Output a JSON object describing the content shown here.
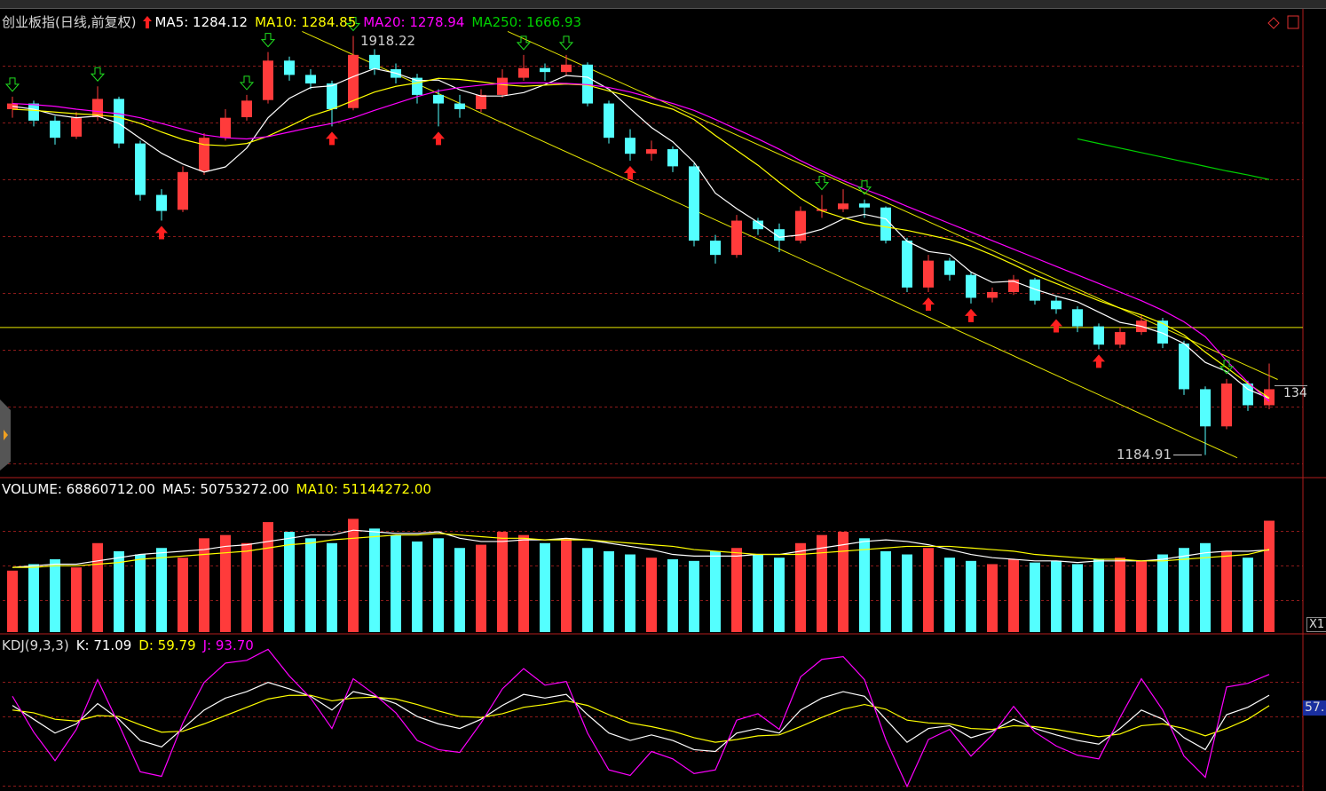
{
  "chart_data": [
    {
      "type": "candlestick",
      "title": "创业板指(日线,前复权)",
      "ylim": [
        1150,
        1950
      ],
      "up_color": "#ff3b3b",
      "down_color": "#54ffff",
      "ohlc": [
        [
          1790,
          1812,
          1775,
          1800
        ],
        [
          1800,
          1805,
          1760,
          1770
        ],
        [
          1770,
          1778,
          1728,
          1740
        ],
        [
          1742,
          1785,
          1738,
          1775
        ],
        [
          1776,
          1830,
          1770,
          1808
        ],
        [
          1808,
          1812,
          1722,
          1730
        ],
        [
          1730,
          1735,
          1630,
          1640
        ],
        [
          1640,
          1650,
          1595,
          1612
        ],
        [
          1614,
          1690,
          1610,
          1680
        ],
        [
          1682,
          1748,
          1675,
          1740
        ],
        [
          1740,
          1790,
          1735,
          1775
        ],
        [
          1776,
          1815,
          1770,
          1805
        ],
        [
          1806,
          1890,
          1800,
          1875
        ],
        [
          1875,
          1882,
          1840,
          1850
        ],
        [
          1850,
          1860,
          1825,
          1835
        ],
        [
          1835,
          1840,
          1760,
          1790
        ],
        [
          1792,
          1918.22,
          1788,
          1885
        ],
        [
          1885,
          1895,
          1850,
          1860
        ],
        [
          1860,
          1870,
          1835,
          1845
        ],
        [
          1845,
          1852,
          1800,
          1815
        ],
        [
          1815,
          1825,
          1760,
          1800
        ],
        [
          1800,
          1815,
          1775,
          1790
        ],
        [
          1790,
          1825,
          1785,
          1815
        ],
        [
          1815,
          1860,
          1810,
          1845
        ],
        [
          1845,
          1885,
          1840,
          1862
        ],
        [
          1862,
          1870,
          1840,
          1855
        ],
        [
          1855,
          1885,
          1850,
          1868
        ],
        [
          1868,
          1872,
          1795,
          1800
        ],
        [
          1800,
          1805,
          1730,
          1740
        ],
        [
          1740,
          1755,
          1700,
          1712
        ],
        [
          1712,
          1735,
          1700,
          1720
        ],
        [
          1720,
          1725,
          1680,
          1690
        ],
        [
          1690,
          1695,
          1550,
          1560
        ],
        [
          1560,
          1570,
          1520,
          1535
        ],
        [
          1535,
          1605,
          1530,
          1595
        ],
        [
          1595,
          1600,
          1570,
          1580
        ],
        [
          1580,
          1590,
          1540,
          1560
        ],
        [
          1560,
          1620,
          1555,
          1612
        ],
        [
          1612,
          1640,
          1600,
          1615
        ],
        [
          1615,
          1650,
          1610,
          1625
        ],
        [
          1625,
          1632,
          1600,
          1618
        ],
        [
          1618,
          1620,
          1555,
          1560
        ],
        [
          1560,
          1565,
          1470,
          1478
        ],
        [
          1478,
          1535,
          1470,
          1525
        ],
        [
          1525,
          1530,
          1490,
          1500
        ],
        [
          1500,
          1505,
          1450,
          1460
        ],
        [
          1460,
          1478,
          1452,
          1470
        ],
        [
          1470,
          1500,
          1465,
          1492
        ],
        [
          1492,
          1495,
          1448,
          1455
        ],
        [
          1455,
          1462,
          1432,
          1440
        ],
        [
          1440,
          1445,
          1400,
          1410
        ],
        [
          1410,
          1415,
          1370,
          1378
        ],
        [
          1378,
          1408,
          1372,
          1400
        ],
        [
          1400,
          1430,
          1395,
          1420
        ],
        [
          1420,
          1425,
          1372,
          1380
        ],
        [
          1380,
          1385,
          1290,
          1300
        ],
        [
          1300,
          1305,
          1184.91,
          1235
        ],
        [
          1235,
          1318,
          1230,
          1310
        ],
        [
          1310,
          1315,
          1262,
          1272
        ],
        [
          1272,
          1345,
          1265,
          1300
        ]
      ],
      "series": [
        {
          "name": "MA5: 1284.12",
          "color": "#ffffff",
          "values": [
            1795,
            1790,
            1780,
            1775,
            1778,
            1765,
            1739,
            1713,
            1694,
            1680,
            1689,
            1722,
            1775,
            1809,
            1828,
            1831,
            1847,
            1861,
            1853,
            1840,
            1841,
            1824,
            1813,
            1813,
            1819,
            1833,
            1849,
            1846,
            1825,
            1791,
            1758,
            1733,
            1697,
            1643,
            1616,
            1592,
            1566,
            1570,
            1580,
            1598,
            1606,
            1598,
            1559,
            1541,
            1536,
            1505,
            1487,
            1489,
            1475,
            1463,
            1453,
            1435,
            1417,
            1410,
            1398,
            1380,
            1347,
            1331,
            1300,
            1284.12
          ]
        },
        {
          "name": "MA10: 1284.85",
          "color": "#ffff00",
          "values": [
            1790,
            1788,
            1785,
            1782,
            1780,
            1776,
            1765,
            1750,
            1737,
            1728,
            1726,
            1730,
            1743,
            1760,
            1778,
            1790,
            1805,
            1820,
            1830,
            1836,
            1844,
            1842,
            1838,
            1833,
            1830,
            1832,
            1834,
            1832,
            1822,
            1812,
            1800,
            1790,
            1772,
            1744,
            1718,
            1692,
            1662,
            1634,
            1612,
            1600,
            1590,
            1584,
            1578,
            1570,
            1562,
            1550,
            1535,
            1518,
            1500,
            1485,
            1470,
            1455,
            1442,
            1430,
            1415,
            1395,
            1365,
            1338,
            1310,
            1284.85
          ]
        },
        {
          "name": "MA20: 1278.94",
          "color": "#ff00ff",
          "values": [
            1800,
            1798,
            1795,
            1790,
            1786,
            1782,
            1775,
            1765,
            1755,
            1745,
            1740,
            1738,
            1742,
            1750,
            1758,
            1765,
            1775,
            1788,
            1800,
            1812,
            1822,
            1828,
            1832,
            1835,
            1836,
            1836,
            1835,
            1833,
            1828,
            1820,
            1810,
            1800,
            1788,
            1772,
            1755,
            1738,
            1720,
            1700,
            1682,
            1665,
            1650,
            1636,
            1620,
            1605,
            1590,
            1575,
            1560,
            1545,
            1530,
            1515,
            1500,
            1485,
            1470,
            1455,
            1438,
            1418,
            1392,
            1350,
            1312,
            1278.94
          ]
        },
        {
          "name": "MA250: 1666.93",
          "color": "#00d000",
          "values": [
            null,
            null,
            null,
            null,
            null,
            null,
            null,
            null,
            null,
            null,
            null,
            null,
            null,
            null,
            null,
            null,
            null,
            null,
            null,
            null,
            null,
            null,
            null,
            null,
            null,
            null,
            null,
            null,
            null,
            null,
            null,
            null,
            null,
            null,
            null,
            null,
            null,
            null,
            null,
            null,
            null,
            null,
            null,
            null,
            null,
            null,
            null,
            null,
            null,
            null,
            1738,
            1730,
            1722,
            1714,
            1706,
            1698,
            1690,
            1682,
            1675,
            1666.93
          ]
        }
      ],
      "hline": 1408,
      "hline_color": "#e8e800",
      "trendlines": [
        {
          "x": [
            13.6,
            57.5
          ],
          "y": [
            1926,
            1180
          ]
        },
        {
          "x": [
            23.25,
            59.4
          ],
          "y": [
            1926,
            1317
          ]
        }
      ],
      "trendline_color": "#e8e800",
      "buy_signals": [
        7,
        15,
        20,
        29,
        43,
        45,
        49,
        51
      ],
      "sell_signals": [
        0,
        4,
        11,
        12,
        16,
        24,
        26,
        38,
        40,
        57
      ],
      "buy_color": "#ff2020",
      "sell_color": "#20e020",
      "high_label": "1918.22",
      "low_label": "1184.91",
      "cursor_label": "134"
    },
    {
      "type": "bar",
      "ylim": [
        0,
        90000000
      ],
      "up_color": "#ff3b3b",
      "down_color": "#54ffff",
      "series": [
        {
          "name": "VOLUME: 68860712.00",
          "color": "#ffffff",
          "values": [
            38000000,
            42000000,
            45000000,
            40000000,
            55000000,
            50000000,
            48000000,
            52000000,
            46000000,
            58000000,
            60000000,
            55000000,
            68000000,
            62000000,
            58000000,
            55000000,
            70000000,
            64000000,
            60000000,
            56000000,
            58000000,
            52000000,
            54000000,
            62000000,
            60000000,
            55000000,
            58000000,
            52000000,
            50000000,
            48000000,
            46000000,
            45000000,
            44000000,
            50000000,
            52000000,
            48000000,
            46000000,
            55000000,
            60000000,
            62000000,
            58000000,
            50000000,
            48000000,
            52000000,
            46000000,
            44000000,
            42000000,
            45000000,
            43000000,
            44000000,
            42000000,
            45000000,
            46000000,
            44000000,
            48000000,
            52000000,
            55000000,
            50000000,
            46000000,
            68860712
          ]
        },
        {
          "name": "MA5: 50753272.00",
          "color": "#ffffff",
          "values": [
            40000000,
            41000000,
            42000000,
            42000000,
            44000000,
            46000000,
            48000000,
            49000000,
            50000000,
            51000000,
            53000000,
            54000000,
            56000000,
            58000000,
            60000000,
            60000000,
            63000000,
            62000000,
            61000000,
            61000000,
            62000000,
            58000000,
            56000000,
            56000000,
            57000000,
            57000000,
            58000000,
            57000000,
            55000000,
            53000000,
            51000000,
            48000000,
            47000000,
            47000000,
            47000000,
            48000000,
            48000000,
            50000000,
            52000000,
            54000000,
            56000000,
            57000000,
            56000000,
            54000000,
            51000000,
            48000000,
            46000000,
            45000000,
            44000000,
            44000000,
            43000000,
            44000000,
            44000000,
            44000000,
            45000000,
            47000000,
            49000000,
            50000000,
            50000000,
            50753272
          ]
        },
        {
          "name": "MA10: 51144272.00",
          "color": "#ffff00",
          "values": [
            40000000,
            40000000,
            41000000,
            41000000,
            42000000,
            43000000,
            45000000,
            46000000,
            47000000,
            48000000,
            49000000,
            50000000,
            52000000,
            54000000,
            55000000,
            57000000,
            58000000,
            59000000,
            60000000,
            60000000,
            61000000,
            60000000,
            59000000,
            58000000,
            58000000,
            57000000,
            57000000,
            57000000,
            56000000,
            55000000,
            54000000,
            53000000,
            51000000,
            50000000,
            49000000,
            48000000,
            48000000,
            48000000,
            49000000,
            50000000,
            51000000,
            52000000,
            53000000,
            53000000,
            53000000,
            52000000,
            51000000,
            50000000,
            48000000,
            47000000,
            46000000,
            45000000,
            45000000,
            44000000,
            44000000,
            45000000,
            46000000,
            47000000,
            48000000,
            51144272
          ]
        }
      ],
      "side_label": "X1"
    },
    {
      "type": "line",
      "title": "KDJ(9,3,3)",
      "ylim": [
        -30,
        130
      ],
      "series": [
        {
          "name": "K: 71.09",
          "color": "#ffffff",
          "values": [
            60,
            45,
            30,
            40,
            62,
            45,
            22,
            15,
            35,
            55,
            68,
            75,
            85,
            78,
            70,
            55,
            75,
            70,
            62,
            48,
            40,
            35,
            45,
            60,
            72,
            68,
            72,
            50,
            30,
            22,
            28,
            22,
            12,
            10,
            30,
            35,
            30,
            55,
            68,
            75,
            70,
            45,
            20,
            35,
            38,
            25,
            32,
            45,
            35,
            28,
            22,
            18,
            35,
            55,
            45,
            25,
            12,
            50,
            58,
            71.09
          ]
        },
        {
          "name": "D: 59.79",
          "color": "#ffff00",
          "values": [
            55,
            52,
            45,
            43,
            49,
            48,
            39,
            31,
            32,
            40,
            49,
            58,
            67,
            71,
            71,
            65,
            68,
            69,
            67,
            61,
            54,
            48,
            47,
            51,
            58,
            61,
            65,
            60,
            50,
            41,
            37,
            32,
            25,
            20,
            23,
            27,
            28,
            37,
            47,
            56,
            61,
            56,
            44,
            41,
            40,
            35,
            34,
            38,
            37,
            34,
            30,
            26,
            29,
            38,
            40,
            35,
            27,
            35,
            45,
            59.79
          ]
        },
        {
          "name": "J: 93.70",
          "color": "#ff00ff",
          "values": [
            70,
            31,
            0,
            34,
            88,
            39,
            -12,
            -17,
            41,
            85,
            106,
            109,
            121,
            92,
            68,
            35,
            89,
            72,
            52,
            22,
            12,
            9,
            41,
            78,
            100,
            82,
            86,
            30,
            -10,
            -16,
            10,
            2,
            -14,
            -10,
            44,
            51,
            34,
            91,
            110,
            113,
            88,
            23,
            -28,
            23,
            34,
            5,
            28,
            59,
            31,
            16,
            6,
            2,
            47,
            89,
            55,
            5,
            -18,
            80,
            84,
            93.7
          ]
        }
      ],
      "side_label": "57."
    }
  ]
}
